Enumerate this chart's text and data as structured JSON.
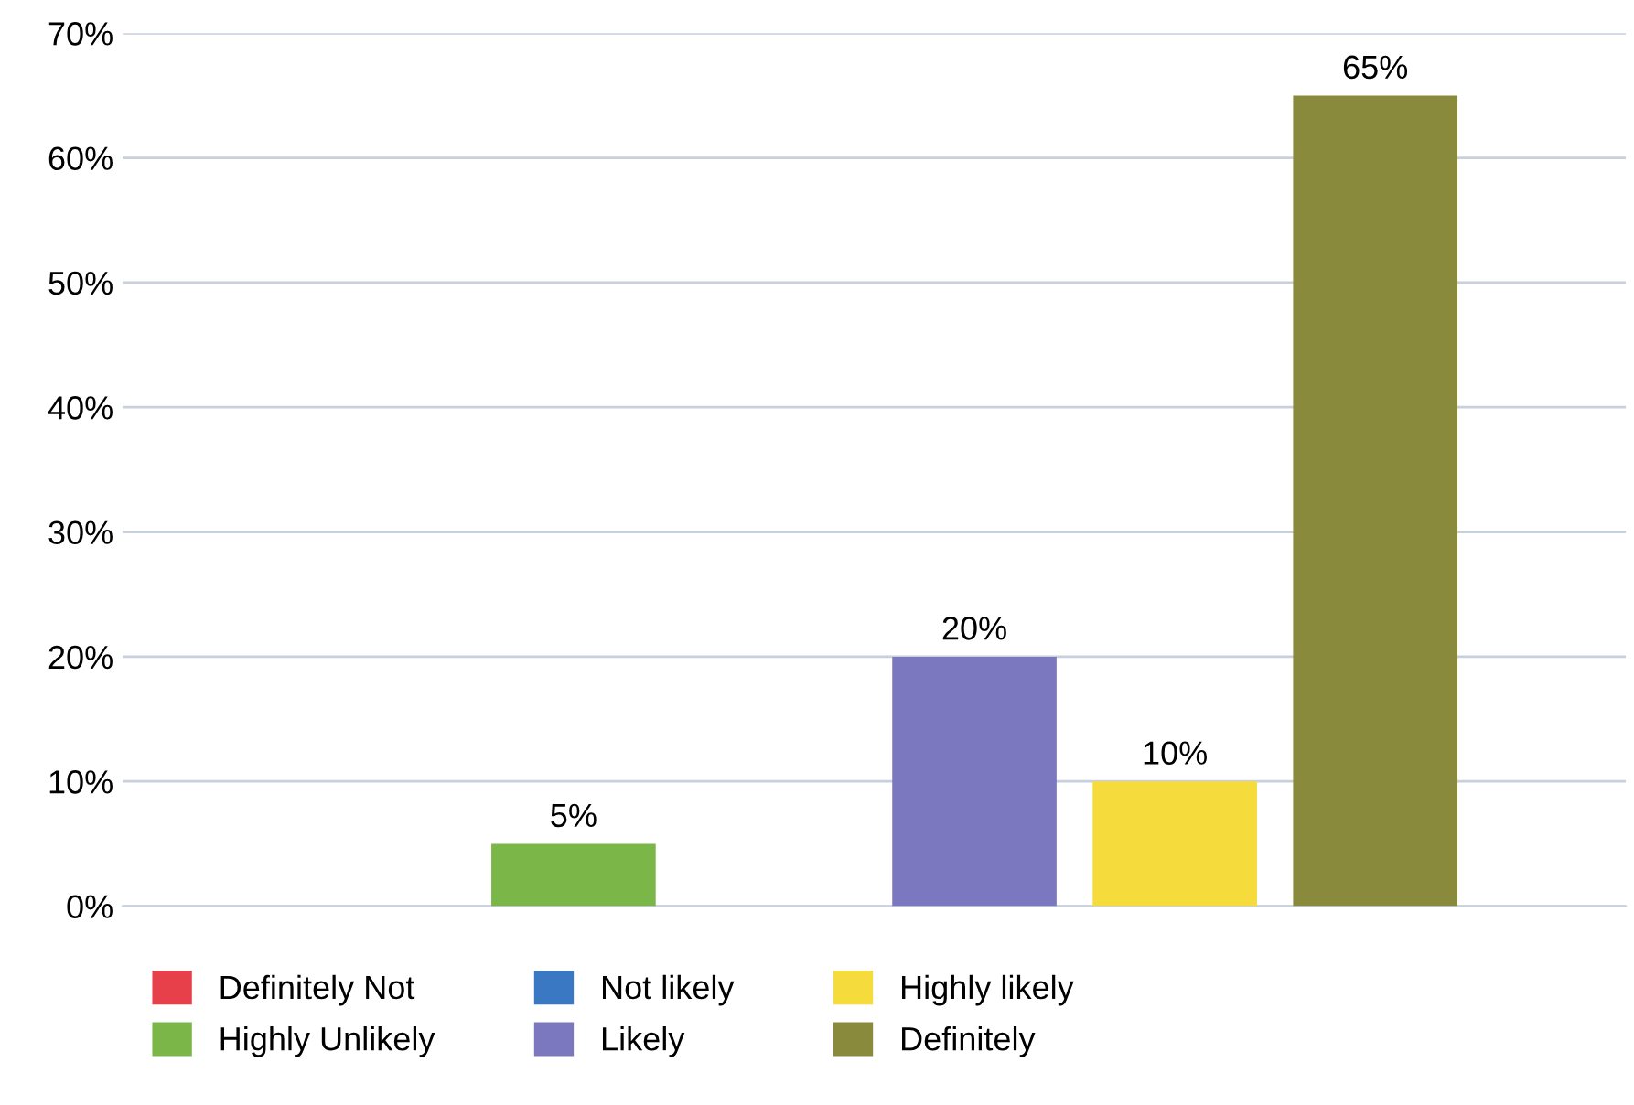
{
  "chart_data": {
    "type": "bar",
    "categories": [
      null
    ],
    "series": [
      {
        "name": "Definitely Not",
        "color": "#e8404a",
        "values": [
          0
        ],
        "value_labels": [
          null
        ]
      },
      {
        "name": "Highly Unlikely",
        "color": "#7ab648",
        "values": [
          5
        ],
        "value_labels": [
          "5%"
        ]
      },
      {
        "name": "Not likely",
        "color": "#3a78c4",
        "values": [
          0
        ],
        "value_labels": [
          null
        ]
      },
      {
        "name": "Likely",
        "color": "#7b78c0",
        "values": [
          20
        ],
        "value_labels": [
          "20%"
        ]
      },
      {
        "name": "Highly likely",
        "color": "#f5dc3c",
        "values": [
          10
        ],
        "value_labels": [
          "10%"
        ]
      },
      {
        "name": "Definitely",
        "color": "#8a8a3c",
        "values": [
          65
        ],
        "value_labels": [
          "65%"
        ]
      }
    ],
    "ylim": [
      0,
      70
    ],
    "yticks": [
      {
        "value": 0,
        "label": "0%"
      },
      {
        "value": 10,
        "label": "10%"
      },
      {
        "value": 20,
        "label": "20%"
      },
      {
        "value": 30,
        "label": "30%"
      },
      {
        "value": 40,
        "label": "40%"
      },
      {
        "value": 50,
        "label": "50%"
      },
      {
        "value": 60,
        "label": "60%"
      },
      {
        "value": 70,
        "label": "70%"
      }
    ],
    "grid": "y",
    "legend": "bottom",
    "tick_labels": "y"
  }
}
